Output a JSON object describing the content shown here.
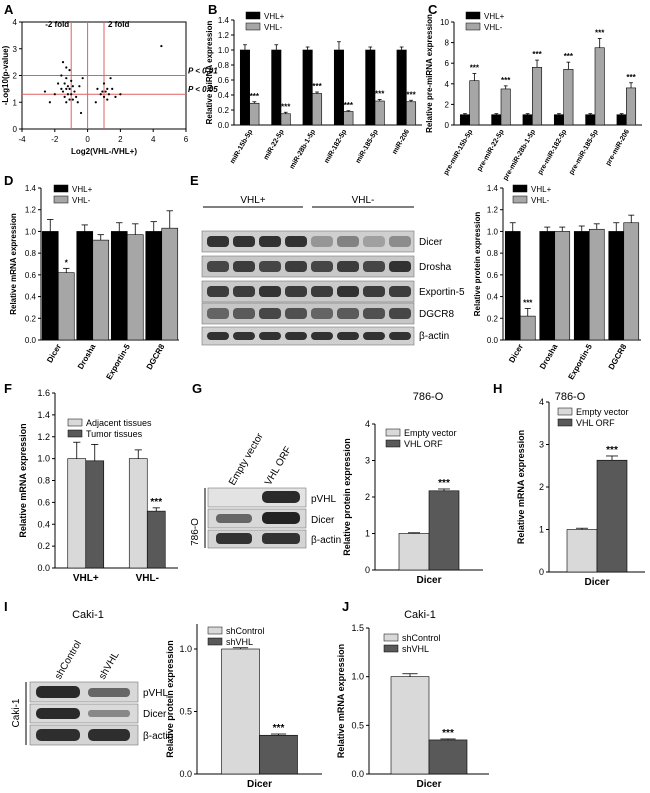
{
  "colors": {
    "black": "#000000",
    "gray": "#a6a6a6",
    "light": "#d9d9d9",
    "dark": "#595959",
    "red": "#e06060"
  },
  "panel_labels": {
    "A": "A",
    "B": "B",
    "C": "C",
    "D": "D",
    "E": "E",
    "F": "F",
    "G": "G",
    "H": "H",
    "I": "I",
    "J": "J"
  },
  "chart_data": [
    {
      "id": "A",
      "type": "scatter",
      "xlabel": "Log2(VHL-/VHL+)",
      "ylabel": "-Log10(p-value)",
      "xlim": [
        -4,
        6
      ],
      "ylim": [
        0,
        4
      ],
      "xticks": [
        "-4",
        "-2",
        "0",
        "2",
        "4",
        "6"
      ],
      "yticks": [
        "0",
        "1",
        "2",
        "3",
        "4"
      ],
      "vlines": [
        {
          "x": -1,
          "label": "-2 fold"
        },
        {
          "x": 1,
          "label": "2 fold"
        }
      ],
      "hlines": [
        {
          "y": 2.0,
          "label": "P < 0.01"
        },
        {
          "y": 1.3,
          "label": "P < 0.05"
        }
      ],
      "points": [
        [
          4.5,
          3.1
        ],
        [
          -1.5,
          2.5
        ],
        [
          -1.3,
          2.3
        ],
        [
          -1.1,
          2.2
        ],
        [
          -1.6,
          2.0
        ],
        [
          -1.3,
          1.9
        ],
        [
          -1.0,
          1.8
        ],
        [
          -1.4,
          1.7
        ],
        [
          -1.2,
          1.6
        ],
        [
          -0.9,
          1.6
        ],
        [
          -1.3,
          1.5
        ],
        [
          -1.1,
          1.5
        ],
        [
          -1.5,
          1.4
        ],
        [
          -0.8,
          1.4
        ],
        [
          -1.2,
          1.3
        ],
        [
          -1.0,
          1.3
        ],
        [
          -1.4,
          1.2
        ],
        [
          -0.7,
          1.2
        ],
        [
          -1.1,
          1.1
        ],
        [
          -0.9,
          1.1
        ],
        [
          -1.3,
          1.0
        ],
        [
          -1.6,
          1.5
        ],
        [
          -2.0,
          1.3
        ],
        [
          -2.3,
          1.0
        ],
        [
          -2.6,
          1.4
        ],
        [
          -0.5,
          1.6
        ],
        [
          -0.3,
          1.9
        ],
        [
          -0.6,
          1.0
        ],
        [
          1.0,
          1.7
        ],
        [
          1.2,
          1.5
        ],
        [
          1.1,
          1.4
        ],
        [
          1.3,
          1.3
        ],
        [
          0.9,
          1.4
        ],
        [
          1.5,
          1.5
        ],
        [
          1.7,
          1.2
        ],
        [
          1.0,
          1.2
        ],
        [
          0.8,
          1.3
        ],
        [
          1.2,
          1.1
        ],
        [
          0.6,
          1.5
        ],
        [
          2.0,
          1.3
        ],
        [
          -0.4,
          0.6
        ],
        [
          0.5,
          1.0
        ],
        [
          1.4,
          1.9
        ],
        [
          -1.8,
          1.7
        ]
      ]
    },
    {
      "id": "B",
      "type": "bar",
      "ylabel": "Relative miRNA expression",
      "ylim": [
        0,
        1.4
      ],
      "yticks": [
        "0.0",
        "0.2",
        "0.4",
        "0.6",
        "0.8",
        "1.0",
        "1.2",
        "1.4"
      ],
      "categories": [
        "miR-15b-5p",
        "miR-22-5p",
        "miR-28b-1-5p",
        "miR-182-5p",
        "miR-185-5p",
        "miR-206"
      ],
      "series": [
        {
          "name": "VHL+",
          "values": [
            1.0,
            1.0,
            1.0,
            1.0,
            1.0,
            1.0
          ],
          "errors": [
            0.07,
            0.07,
            0.04,
            0.11,
            0.04,
            0.04
          ]
        },
        {
          "name": "VHL-",
          "values": [
            0.29,
            0.15,
            0.42,
            0.18,
            0.32,
            0.31
          ],
          "errors": [
            0.02,
            0.02,
            0.02,
            0.01,
            0.02,
            0.02
          ]
        }
      ],
      "stars": [
        "***",
        "***",
        "***",
        "***",
        "***",
        "***"
      ]
    },
    {
      "id": "C",
      "type": "bar",
      "ylabel": "Relative pre-miRNA expression",
      "ylim": [
        0,
        10
      ],
      "yticks": [
        "0",
        "2",
        "4",
        "6",
        "8",
        "10"
      ],
      "categories": [
        "pre-miR-15b-5p",
        "pre-miR-22-5p",
        "pre-miR-28b-1-5p",
        "pre-miR-182-5p",
        "pre-miR-185-5p",
        "pre-miR-206"
      ],
      "series": [
        {
          "name": "VHL+",
          "values": [
            1.0,
            1.0,
            1.0,
            1.0,
            1.0,
            1.0
          ],
          "errors": [
            0.1,
            0.1,
            0.1,
            0.1,
            0.1,
            0.1
          ]
        },
        {
          "name": "VHL-",
          "values": [
            4.3,
            3.5,
            5.6,
            5.4,
            7.5,
            3.6
          ],
          "errors": [
            0.7,
            0.3,
            0.7,
            0.7,
            0.9,
            0.5
          ]
        }
      ],
      "stars": [
        "***",
        "***",
        "***",
        "***",
        "***",
        "***"
      ]
    },
    {
      "id": "D",
      "type": "bar",
      "ylabel": "Relative mRNA expression",
      "ylim": [
        0,
        1.4
      ],
      "yticks": [
        "0.0",
        "0.2",
        "0.4",
        "0.6",
        "0.8",
        "1.0",
        "1.2",
        "1.4"
      ],
      "categories": [
        "Dicer",
        "Drosha",
        "Exportin-5",
        "DGCR8"
      ],
      "series": [
        {
          "name": "VHL+",
          "values": [
            1.0,
            1.0,
            1.0,
            1.0
          ],
          "errors": [
            0.11,
            0.06,
            0.08,
            0.09
          ],
          "color": "#000000"
        },
        {
          "name": "VHL-",
          "values": [
            0.62,
            0.92,
            0.97,
            1.03
          ],
          "errors": [
            0.04,
            0.05,
            0.1,
            0.16
          ],
          "color": "#a6a6a6"
        }
      ],
      "stars": [
        "*",
        "",
        "",
        ""
      ]
    },
    {
      "id": "E",
      "type": "bar",
      "ylabel": "Relative protein expression",
      "ylim": [
        0,
        1.4
      ],
      "yticks": [
        "0.0",
        "0.2",
        "0.4",
        "0.6",
        "0.8",
        "1.0",
        "1.2",
        "1.4"
      ],
      "categories": [
        "Dicer",
        "Drosha",
        "Exportin-5",
        "DGCR8"
      ],
      "series": [
        {
          "name": "VHL+",
          "values": [
            1.0,
            1.0,
            1.0,
            1.0
          ],
          "errors": [
            0.08,
            0.04,
            0.05,
            0.08
          ],
          "color": "#000000"
        },
        {
          "name": "VHL-",
          "values": [
            0.22,
            1.0,
            1.02,
            1.08
          ],
          "errors": [
            0.07,
            0.04,
            0.05,
            0.07
          ],
          "color": "#a6a6a6"
        }
      ],
      "stars": [
        "***",
        "",
        "",
        ""
      ]
    },
    {
      "id": "F",
      "type": "bar",
      "ylabel": "Relative mRNA expression",
      "ylim": [
        0,
        1.6
      ],
      "yticks": [
        "0.0",
        "0.2",
        "0.4",
        "0.6",
        "0.8",
        "1.0",
        "1.2",
        "1.4",
        "1.6"
      ],
      "categories": [
        "VHL+",
        "VHL-"
      ],
      "series": [
        {
          "name": "Adjacent tissues",
          "values": [
            1.0,
            1.0
          ],
          "errors": [
            0.15,
            0.08
          ],
          "color": "#d9d9d9"
        },
        {
          "name": "Tumor tissues",
          "values": [
            0.98,
            0.52
          ],
          "errors": [
            0.15,
            0.03
          ],
          "color": "#595959"
        }
      ],
      "stars": [
        "",
        "***"
      ]
    },
    {
      "id": "G",
      "type": "bar",
      "title": "786-O",
      "ylabel": "Relative protein expression",
      "ylim": [
        0,
        4
      ],
      "yticks": [
        "0",
        "1",
        "2",
        "3",
        "4"
      ],
      "categories": [
        "Dicer"
      ],
      "series": [
        {
          "name": "Empty vector",
          "values": [
            1.0
          ],
          "errors": [
            0.02
          ],
          "color": "#d9d9d9"
        },
        {
          "name": "VHL ORF",
          "values": [
            2.17
          ],
          "errors": [
            0.05
          ],
          "color": "#595959"
        }
      ],
      "stars": [
        "***"
      ]
    },
    {
      "id": "H",
      "type": "bar",
      "title": "786-O",
      "ylabel": "Relative mRNA expression",
      "ylim": [
        0,
        4
      ],
      "yticks": [
        "0",
        "1",
        "2",
        "3",
        "4"
      ],
      "categories": [
        "Dicer"
      ],
      "series": [
        {
          "name": "Empty vector",
          "values": [
            1.0
          ],
          "errors": [
            0.03
          ],
          "color": "#d9d9d9"
        },
        {
          "name": "VHL ORF",
          "values": [
            2.63
          ],
          "errors": [
            0.1
          ],
          "color": "#595959"
        }
      ],
      "stars": [
        "***"
      ]
    },
    {
      "id": "I",
      "type": "bar",
      "ylabel": "Relative protein expression",
      "ylim": [
        0,
        1.2
      ],
      "yticks": [
        "0.0",
        "0.5",
        "1.0"
      ],
      "categories": [
        "Dicer"
      ],
      "series": [
        {
          "name": "shControl",
          "values": [
            1.0
          ],
          "errors": [
            0.01
          ],
          "color": "#d9d9d9"
        },
        {
          "name": "shVHL",
          "values": [
            0.31
          ],
          "errors": [
            0.01
          ],
          "color": "#595959"
        }
      ],
      "stars": [
        "***"
      ]
    },
    {
      "id": "J",
      "type": "bar",
      "title": "Caki-1",
      "ylabel": "Relative mRNA expression",
      "ylim": [
        0,
        1.5
      ],
      "yticks": [
        "0.0",
        "0.5",
        "1.0",
        "1.5"
      ],
      "categories": [
        "Dicer"
      ],
      "series": [
        {
          "name": "shControl",
          "values": [
            1.0
          ],
          "errors": [
            0.03
          ],
          "color": "#d9d9d9"
        },
        {
          "name": "shVHL",
          "values": [
            0.35
          ],
          "errors": [
            0.01
          ],
          "color": "#595959"
        }
      ],
      "stars": [
        "***"
      ]
    }
  ],
  "blots": {
    "E": {
      "groups": [
        "VHL+",
        "VHL-"
      ],
      "bands": [
        "Dicer",
        "Drosha",
        "Exportin-5",
        "DGCR8",
        "β-actin"
      ]
    },
    "G": {
      "cell": "786-O",
      "lanes": [
        "Empty vector",
        "VHL ORF"
      ],
      "bands": [
        "pVHL",
        "Dicer",
        "β-actin"
      ]
    },
    "I": {
      "cell": "Caki-1",
      "lanes": [
        "shControl",
        "shVHL"
      ],
      "bands": [
        "pVHL",
        "Dicer",
        "β-actin"
      ]
    }
  },
  "caki_title": "Caki-1"
}
